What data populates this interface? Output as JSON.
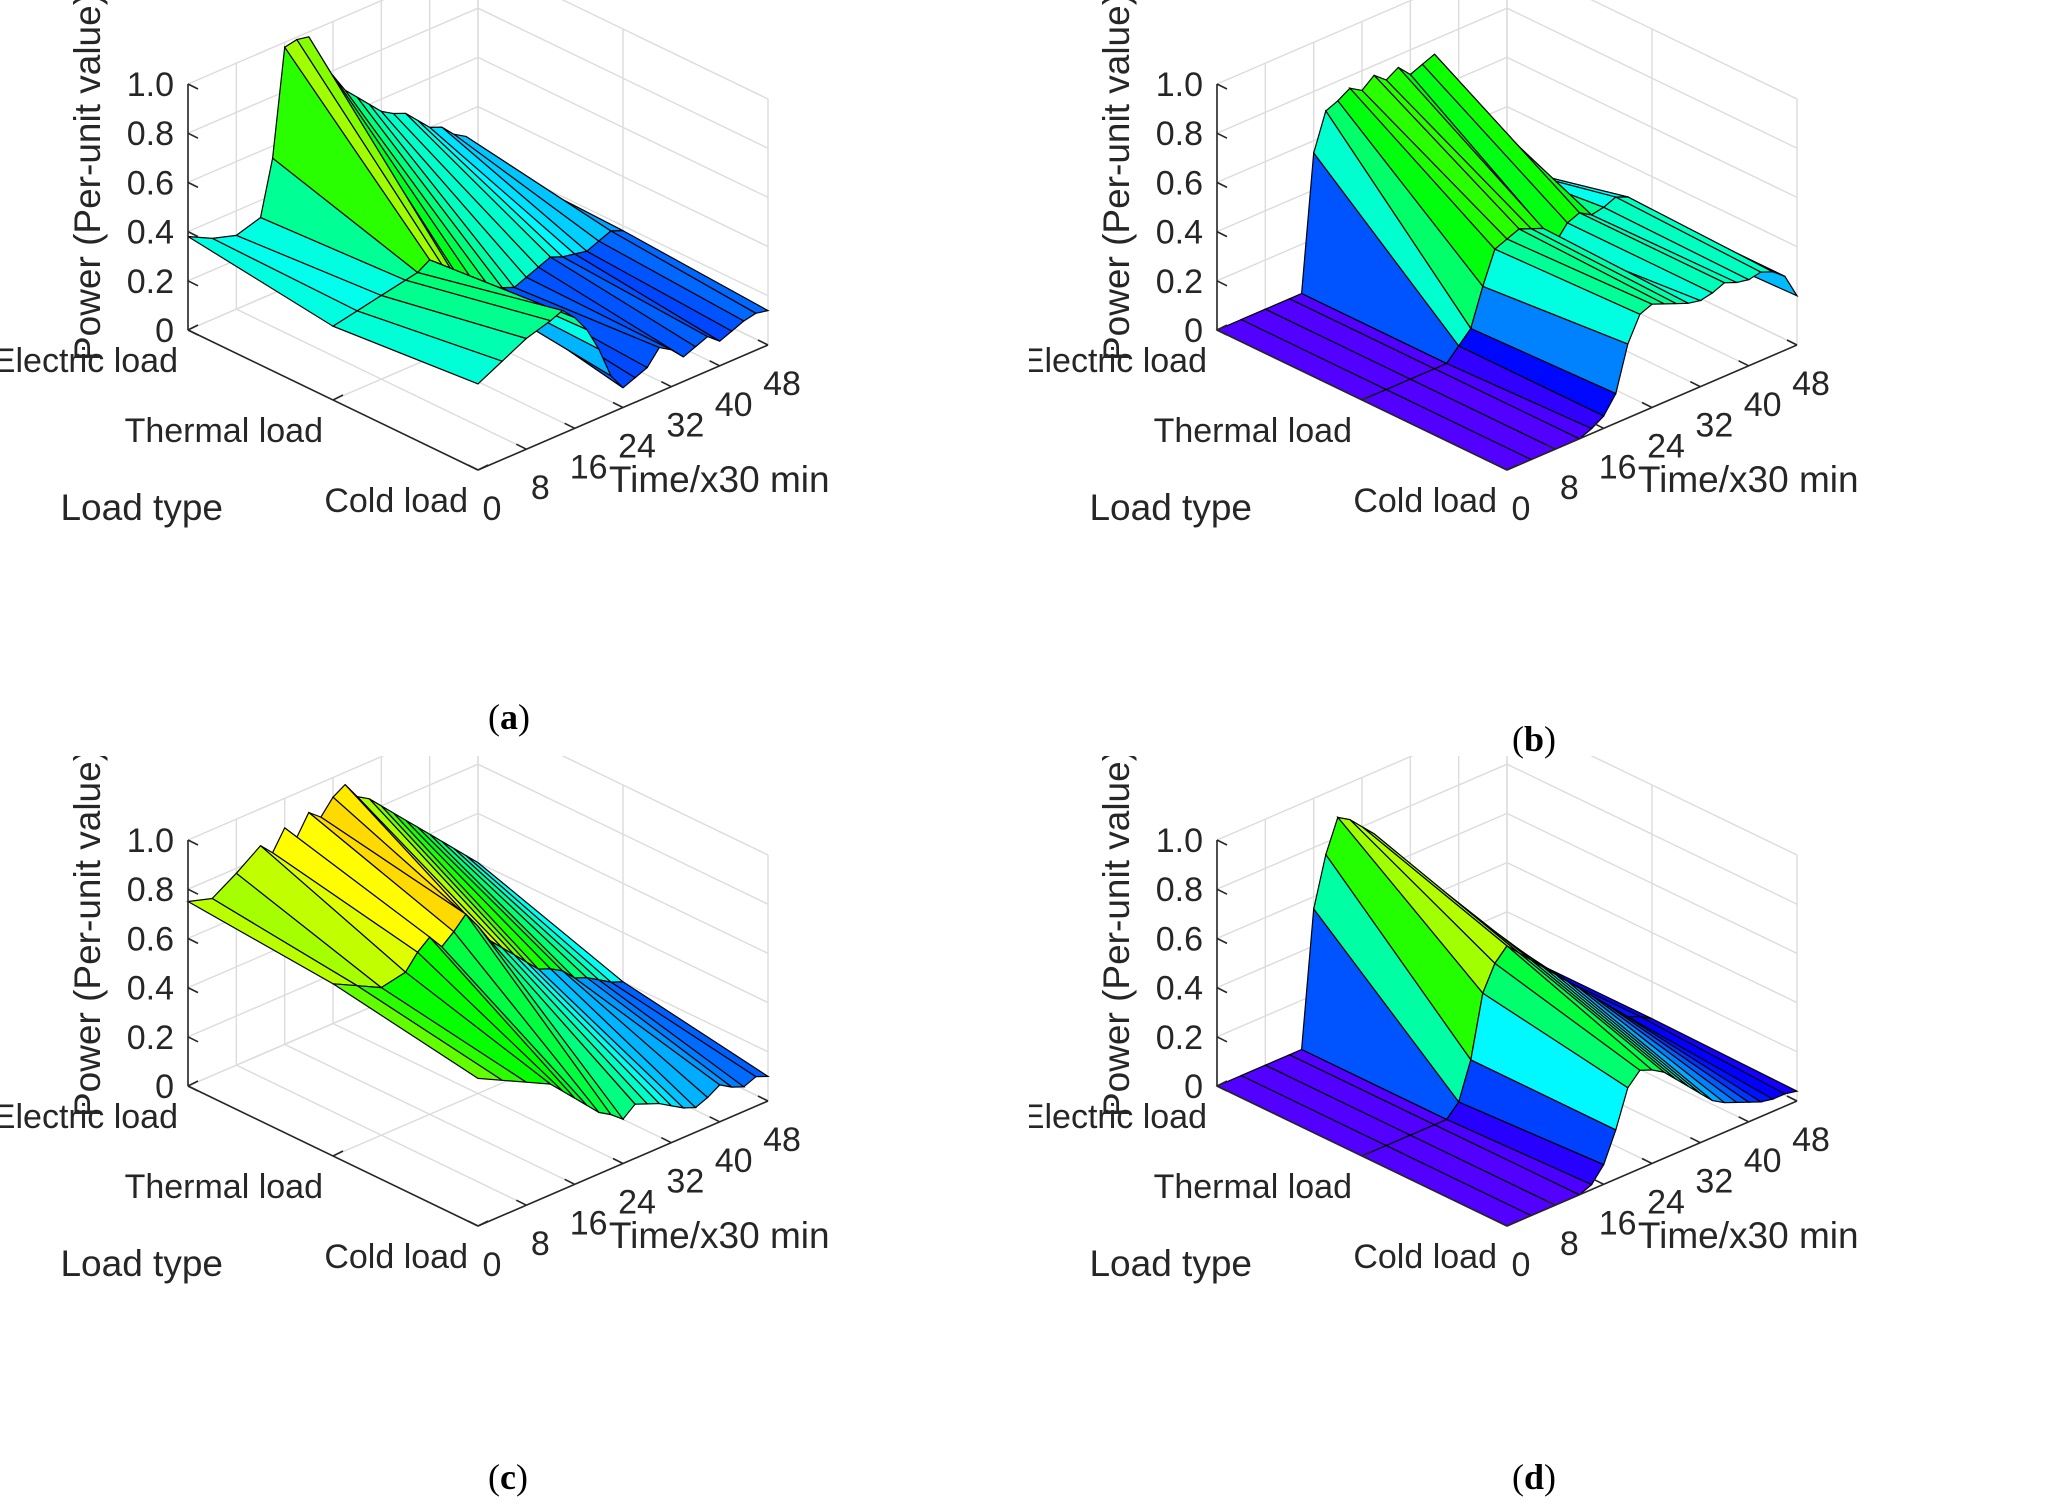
{
  "chart_data": [
    {
      "type": "surface",
      "panel": "a",
      "caption_prefix": "(",
      "caption_letter": "a",
      "caption_suffix": ")",
      "zlabel": "Power (Per-unit value)",
      "xlabel": "Time/x30 min",
      "ylabel": "Load type",
      "z_ticks": [
        "0",
        "0.2",
        "0.4",
        "0.6",
        "0.8",
        "1.0"
      ],
      "x_ticks": [
        "0",
        "8",
        "16",
        "24",
        "32",
        "40",
        "48"
      ],
      "y_ticks": [
        "Electric load",
        "Thermal load",
        "Cold load"
      ],
      "xlim": [
        0,
        48
      ],
      "zlim": [
        0,
        1
      ],
      "x": [
        0,
        4,
        8,
        12,
        14,
        16,
        18,
        20,
        22,
        24,
        26,
        28,
        30,
        32,
        34,
        36,
        38,
        40,
        42,
        44,
        46,
        48
      ],
      "series": [
        {
          "name": "Electric load",
          "values": [
            0.38,
            0.33,
            0.3,
            0.33,
            0.55,
            0.98,
            0.99,
            0.98,
            0.85,
            0.78,
            0.7,
            0.65,
            0.6,
            0.55,
            0.52,
            0.5,
            0.45,
            0.4,
            0.38,
            0.33,
            0.3,
            0.2
          ]
        },
        {
          "name": "Thermal load",
          "values": [
            0.3,
            0.32,
            0.34,
            0.36,
            0.37,
            0.4,
            0.36,
            0.3,
            0.22,
            0.2,
            0.18,
            0.16,
            0.14,
            0.16,
            0.18,
            0.2,
            0.18,
            0.17,
            0.16,
            0.18,
            0.2,
            0.18
          ]
        },
        {
          "name": "Cold load",
          "values": [
            0.35,
            0.4,
            0.45,
            0.48,
            0.5,
            0.45,
            0.38,
            0.28,
            0.15,
            0.08,
            0.1,
            0.12,
            0.18,
            0.15,
            0.1,
            0.12,
            0.14,
            0.1,
            0.12,
            0.14,
            0.15,
            0.14
          ]
        }
      ]
    },
    {
      "type": "surface",
      "panel": "b",
      "caption_prefix": "(",
      "caption_letter": "b",
      "caption_suffix": ")",
      "zlabel": "Power (Per-unit value)",
      "xlabel": "Time/x30 min",
      "ylabel": "Load type",
      "z_ticks": [
        "0",
        "0.2",
        "0.4",
        "0.6",
        "0.8",
        "1.0"
      ],
      "x_ticks": [
        "0",
        "8",
        "16",
        "24",
        "32",
        "40",
        "48"
      ],
      "y_ticks": [
        "Electric load",
        "Thermal load",
        "Cold load"
      ],
      "xlim": [
        0,
        48
      ],
      "zlim": [
        0,
        1
      ],
      "x": [
        0,
        4,
        8,
        12,
        14,
        16,
        18,
        20,
        22,
        24,
        26,
        28,
        30,
        32,
        34,
        36,
        38,
        40,
        42,
        44,
        46,
        48
      ],
      "series": [
        {
          "name": "Electric load",
          "values": [
            0.0,
            0.0,
            0.0,
            0.0,
            0.0,
            0.55,
            0.7,
            0.72,
            0.75,
            0.72,
            0.76,
            0.72,
            0.75,
            0.7,
            0.72,
            0.74,
            0.62,
            0.3,
            0.25,
            0.22,
            0.2,
            0.1
          ]
        },
        {
          "name": "Thermal load",
          "values": [
            0.0,
            0.0,
            0.0,
            0.0,
            0.0,
            0.05,
            0.1,
            0.25,
            0.38,
            0.4,
            0.42,
            0.4,
            0.38,
            0.3,
            0.36,
            0.38,
            0.35,
            0.36,
            0.38,
            0.36,
            0.3,
            0.18
          ]
        },
        {
          "name": "Cold load",
          "values": [
            0.0,
            0.0,
            0.0,
            0.0,
            0.02,
            0.05,
            0.12,
            0.3,
            0.4,
            0.42,
            0.4,
            0.38,
            0.36,
            0.35,
            0.36,
            0.38,
            0.36,
            0.35,
            0.36,
            0.34,
            0.3,
            0.2
          ]
        }
      ]
    },
    {
      "type": "surface",
      "panel": "c",
      "caption_prefix": "(",
      "caption_letter": "c",
      "caption_suffix": ")",
      "zlabel": "Power (Per-unit value)",
      "xlabel": "Time/x30 min",
      "ylabel": "Load type",
      "z_ticks": [
        "0",
        "0.2",
        "0.4",
        "0.6",
        "0.8",
        "1.0"
      ],
      "x_ticks": [
        "0",
        "8",
        "16",
        "24",
        "32",
        "40",
        "48"
      ],
      "y_ticks": [
        "Electric load",
        "Thermal load",
        "Cold load"
      ],
      "xlim": [
        0,
        48
      ],
      "zlim": [
        0,
        1
      ],
      "x": [
        0,
        4,
        8,
        12,
        14,
        16,
        18,
        20,
        22,
        24,
        26,
        28,
        30,
        32,
        34,
        36,
        38,
        40,
        42,
        44,
        46,
        48
      ],
      "series": [
        {
          "name": "Electric load",
          "values": [
            0.75,
            0.72,
            0.78,
            0.85,
            0.8,
            0.88,
            0.82,
            0.9,
            0.86,
            0.92,
            0.95,
            0.88,
            0.85,
            0.8,
            0.75,
            0.7,
            0.65,
            0.6,
            0.55,
            0.5,
            0.45,
            0.4
          ]
        },
        {
          "name": "Thermal load",
          "values": [
            0.7,
            0.65,
            0.6,
            0.62,
            0.68,
            0.72,
            0.66,
            0.7,
            0.75,
            0.68,
            0.6,
            0.55,
            0.5,
            0.45,
            0.4,
            0.38,
            0.35,
            0.3,
            0.28,
            0.25,
            0.22,
            0.2
          ]
        },
        {
          "name": "Cold load",
          "values": [
            0.6,
            0.55,
            0.5,
            0.45,
            0.4,
            0.35,
            0.3,
            0.25,
            0.22,
            0.18,
            0.22,
            0.2,
            0.18,
            0.15,
            0.12,
            0.1,
            0.12,
            0.15,
            0.12,
            0.1,
            0.12,
            0.1
          ]
        }
      ]
    },
    {
      "type": "surface",
      "panel": "d",
      "caption_prefix": "(",
      "caption_letter": "d",
      "caption_suffix": ")",
      "zlabel": "Power (Per-unit value)",
      "xlabel": "Time/x30 min",
      "ylabel": "Load type",
      "z_ticks": [
        "0",
        "0.2",
        "0.4",
        "0.6",
        "0.8",
        "1.0"
      ],
      "x_ticks": [
        "0",
        "8",
        "16",
        "24",
        "32",
        "40",
        "48"
      ],
      "y_ticks": [
        "Electric load",
        "Thermal load",
        "Cold load"
      ],
      "xlim": [
        0,
        48
      ],
      "zlim": [
        0,
        1
      ],
      "x": [
        0,
        4,
        8,
        12,
        14,
        16,
        18,
        20,
        22,
        24,
        26,
        28,
        30,
        32,
        34,
        36,
        38,
        40,
        42,
        44,
        46,
        48
      ],
      "series": [
        {
          "name": "Electric load",
          "values": [
            0.0,
            0.0,
            0.0,
            0.0,
            0.0,
            0.55,
            0.75,
            0.88,
            0.85,
            0.8,
            0.75,
            0.68,
            0.6,
            0.52,
            0.45,
            0.38,
            0.3,
            0.22,
            0.15,
            0.1,
            0.08,
            0.05
          ]
        },
        {
          "name": "Thermal load",
          "values": [
            0.0,
            0.0,
            0.0,
            0.0,
            0.0,
            0.05,
            0.2,
            0.45,
            0.55,
            0.6,
            0.55,
            0.5,
            0.45,
            0.4,
            0.35,
            0.3,
            0.25,
            0.2,
            0.15,
            0.1,
            0.08,
            0.05
          ]
        },
        {
          "name": "Cold load",
          "values": [
            0.0,
            0.0,
            0.0,
            0.0,
            0.02,
            0.08,
            0.2,
            0.35,
            0.4,
            0.38,
            0.35,
            0.3,
            0.25,
            0.2,
            0.15,
            0.12,
            0.1,
            0.08,
            0.06,
            0.05,
            0.05,
            0.04
          ]
        }
      ]
    }
  ]
}
